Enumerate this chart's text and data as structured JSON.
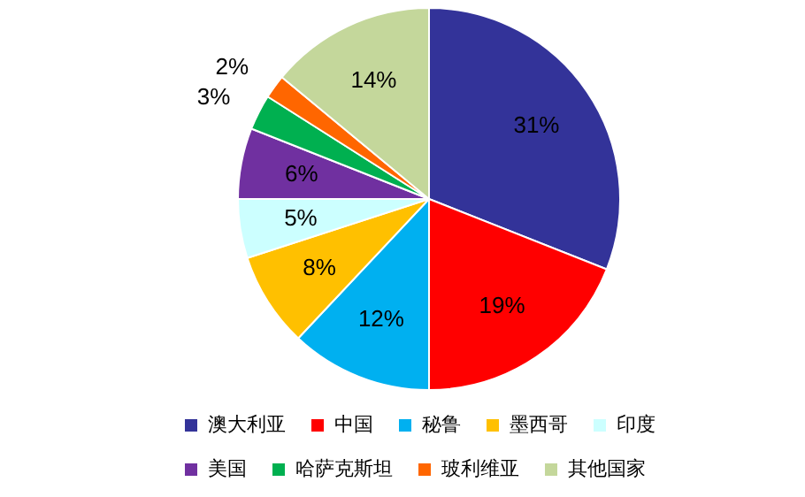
{
  "chart_data": {
    "type": "pie",
    "categories": [
      "澳大利亚",
      "中国",
      "秘鲁",
      "墨西哥",
      "印度",
      "美国",
      "哈萨克斯坦",
      "玻利维亚",
      "其他国家"
    ],
    "values": [
      31,
      19,
      12,
      8,
      5,
      6,
      3,
      2,
      14
    ],
    "colors": [
      "#333399",
      "#ff0000",
      "#00b0f0",
      "#ffc000",
      "#ccffff",
      "#7030a0",
      "#00b050",
      "#ff6600",
      "#c4d79b"
    ],
    "value_labels": [
      "31%",
      "19%",
      "12%",
      "8%",
      "5%",
      "6%",
      "3%",
      "2%",
      "14%"
    ],
    "legend": "bottom"
  }
}
